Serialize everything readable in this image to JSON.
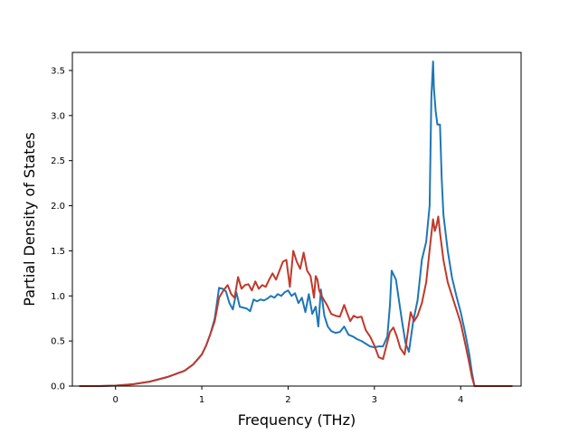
{
  "chart_data": {
    "type": "line",
    "title": "",
    "xlabel": "Frequency (THz)",
    "ylabel": "Partial Density of States",
    "xlim": [
      -0.5,
      4.7
    ],
    "ylim": [
      0.0,
      3.7
    ],
    "xticks": [
      0,
      1,
      2,
      3,
      4
    ],
    "xtick_labels": [
      "0",
      "1",
      "2",
      "3",
      "4"
    ],
    "yticks": [
      0.0,
      0.5,
      1.0,
      1.5,
      2.0,
      2.5,
      3.0,
      3.5
    ],
    "ytick_labels": [
      "0.0",
      "0.5",
      "1.0",
      "1.5",
      "2.0",
      "2.5",
      "3.0",
      "3.5"
    ],
    "grid": false,
    "legend": "none",
    "series": [
      {
        "color": "#1f77b4",
        "x": [
          -0.42,
          -0.2,
          0,
          0.2,
          0.4,
          0.6,
          0.8,
          0.9,
          1.0,
          1.05,
          1.1,
          1.15,
          1.2,
          1.24,
          1.28,
          1.32,
          1.36,
          1.4,
          1.44,
          1.48,
          1.52,
          1.56,
          1.6,
          1.64,
          1.68,
          1.72,
          1.76,
          1.8,
          1.84,
          1.88,
          1.92,
          1.96,
          2.0,
          2.04,
          2.08,
          2.12,
          2.16,
          2.2,
          2.24,
          2.28,
          2.32,
          2.35,
          2.38,
          2.42,
          2.46,
          2.5,
          2.55,
          2.6,
          2.65,
          2.7,
          2.75,
          2.8,
          2.85,
          2.9,
          2.95,
          3.0,
          3.05,
          3.1,
          3.15,
          3.18,
          3.2,
          3.22,
          3.25,
          3.28,
          3.32,
          3.36,
          3.4,
          3.45,
          3.5,
          3.55,
          3.6,
          3.64,
          3.66,
          3.68,
          3.69,
          3.71,
          3.73,
          3.76,
          3.78,
          3.8,
          3.85,
          3.9,
          3.95,
          4.0,
          4.05,
          4.1,
          4.13,
          4.16,
          4.2,
          4.4,
          4.6
        ],
        "y": [
          0,
          0,
          0.005,
          0.02,
          0.05,
          0.1,
          0.17,
          0.24,
          0.35,
          0.45,
          0.58,
          0.75,
          1.09,
          1.08,
          1.05,
          0.92,
          0.85,
          1.04,
          0.88,
          0.87,
          0.86,
          0.83,
          0.96,
          0.94,
          0.96,
          0.95,
          0.97,
          1.0,
          0.98,
          1.02,
          1.0,
          1.04,
          1.06,
          1.0,
          1.03,
          0.92,
          0.98,
          0.82,
          1.02,
          0.8,
          0.88,
          0.66,
          1.07,
          0.78,
          0.66,
          0.61,
          0.59,
          0.6,
          0.66,
          0.57,
          0.55,
          0.52,
          0.5,
          0.47,
          0.44,
          0.43,
          0.44,
          0.44,
          0.55,
          0.9,
          1.28,
          1.24,
          1.18,
          0.98,
          0.72,
          0.48,
          0.38,
          0.72,
          0.95,
          1.4,
          1.6,
          2.0,
          3.2,
          3.6,
          3.3,
          3.05,
          2.9,
          2.9,
          2.3,
          1.9,
          1.5,
          1.2,
          1.0,
          0.82,
          0.6,
          0.35,
          0.15,
          0.0,
          0,
          0,
          0
        ]
      },
      {
        "color": "#c0392b",
        "x": [
          -0.42,
          -0.2,
          0,
          0.2,
          0.4,
          0.6,
          0.8,
          0.9,
          1.0,
          1.05,
          1.1,
          1.15,
          1.2,
          1.25,
          1.3,
          1.34,
          1.38,
          1.42,
          1.46,
          1.5,
          1.54,
          1.58,
          1.62,
          1.66,
          1.7,
          1.74,
          1.78,
          1.82,
          1.86,
          1.9,
          1.94,
          1.98,
          2.02,
          2.06,
          2.1,
          2.14,
          2.18,
          2.22,
          2.26,
          2.3,
          2.32,
          2.34,
          2.36,
          2.4,
          2.45,
          2.5,
          2.55,
          2.6,
          2.65,
          2.68,
          2.72,
          2.76,
          2.8,
          2.85,
          2.9,
          2.95,
          3.0,
          3.05,
          3.1,
          3.14,
          3.18,
          3.22,
          3.26,
          3.3,
          3.35,
          3.38,
          3.42,
          3.46,
          3.5,
          3.55,
          3.6,
          3.65,
          3.68,
          3.7,
          3.72,
          3.74,
          3.76,
          3.78,
          3.8,
          3.85,
          3.9,
          3.95,
          4.0,
          4.05,
          4.1,
          4.13,
          4.16,
          4.2,
          4.4,
          4.6
        ],
        "y": [
          0,
          0,
          0.005,
          0.02,
          0.05,
          0.1,
          0.17,
          0.24,
          0.35,
          0.45,
          0.58,
          0.72,
          0.98,
          1.06,
          1.12,
          1.02,
          0.98,
          1.21,
          1.08,
          1.12,
          1.13,
          1.06,
          1.16,
          1.08,
          1.12,
          1.1,
          1.18,
          1.25,
          1.18,
          1.28,
          1.38,
          1.4,
          1.1,
          1.5,
          1.38,
          1.3,
          1.48,
          1.28,
          1.22,
          0.98,
          1.22,
          1.18,
          1.06,
          0.98,
          0.9,
          0.8,
          0.78,
          0.77,
          0.9,
          0.82,
          0.72,
          0.78,
          0.76,
          0.77,
          0.62,
          0.55,
          0.45,
          0.32,
          0.3,
          0.45,
          0.6,
          0.65,
          0.55,
          0.42,
          0.35,
          0.55,
          0.82,
          0.72,
          0.78,
          0.92,
          1.15,
          1.6,
          1.85,
          1.72,
          1.78,
          1.88,
          1.7,
          1.55,
          1.4,
          1.15,
          1.0,
          0.85,
          0.7,
          0.48,
          0.25,
          0.1,
          0.0,
          0,
          0,
          0
        ]
      }
    ]
  }
}
